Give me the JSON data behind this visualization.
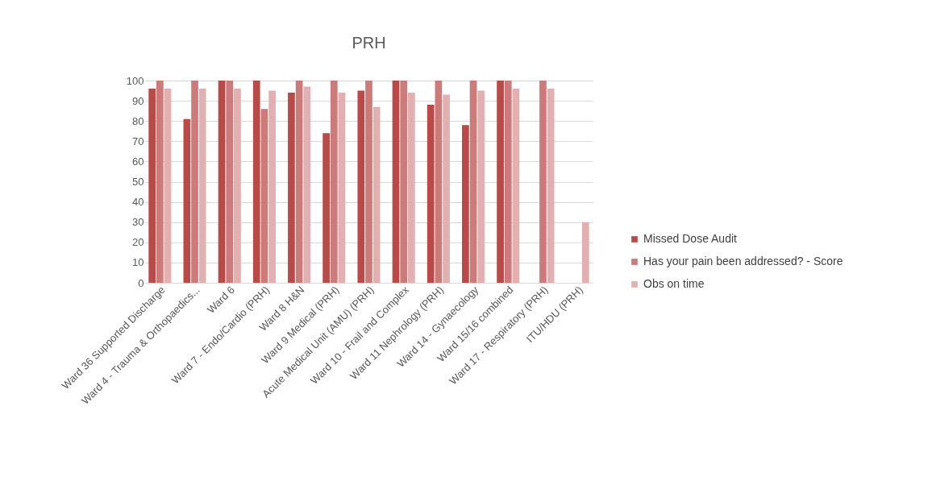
{
  "chart_data": {
    "type": "bar",
    "title": "PRH",
    "categories": [
      "Ward 36 Supported Discharge",
      "Ward 4 - Trauma & Orthopaedics...",
      "Ward 6",
      "Ward 7 - Endo/Cardio (PRH)",
      "Ward 8 H&N",
      "Ward 9 Medical (PRH)",
      "Acute Medical Unit (AMU) (PRH)",
      "Ward 10 - Frail and Complex",
      "Ward 11 Nephrology (PRH)",
      "Ward 14 - Gynaecology",
      "Ward 15/16 combined",
      "Ward 17 - Respiratory (PRH)",
      "ITU/HDU (PRH)"
    ],
    "series": [
      {
        "name": "Missed Dose Audit",
        "color": "#b94a48",
        "values": [
          96,
          81,
          100,
          100,
          94,
          74,
          95,
          100,
          88,
          78,
          100,
          null,
          null
        ]
      },
      {
        "name": "Has your pain been addressed? - Score",
        "color": "#cd7b7a",
        "values": [
          100,
          100,
          100,
          86,
          100,
          100,
          100,
          100,
          100,
          100,
          100,
          100,
          null
        ]
      },
      {
        "name": "Obs on time",
        "color": "#e2b0b0",
        "values": [
          96,
          96,
          96,
          95,
          97,
          94,
          87,
          94,
          93,
          95,
          96,
          96,
          30
        ]
      }
    ],
    "ylim": [
      0,
      100
    ],
    "yticks": [
      0,
      10,
      20,
      30,
      40,
      50,
      60,
      70,
      80,
      90,
      100
    ],
    "grid": "y",
    "legend": "right"
  }
}
